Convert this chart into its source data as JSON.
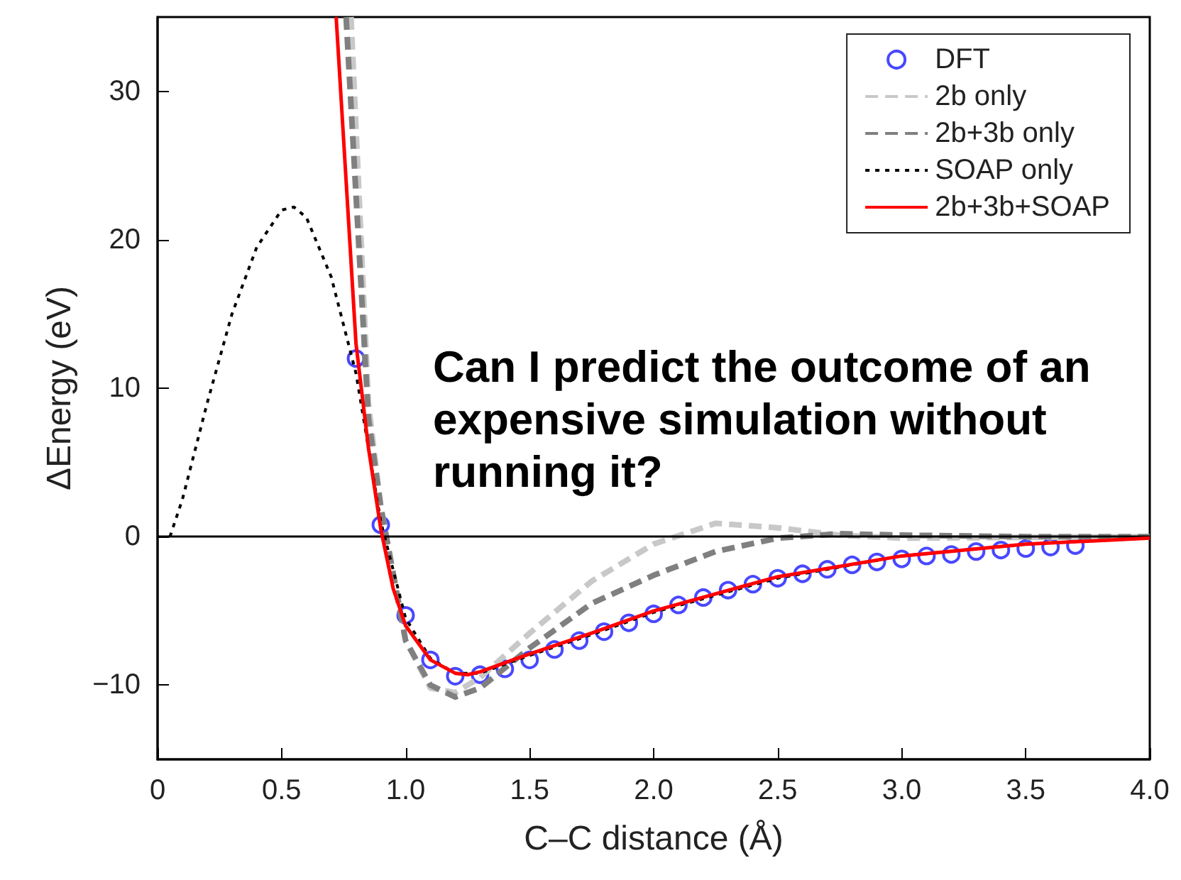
{
  "chart_data": {
    "type": "line",
    "xlabel": "C–C distance (Å)",
    "ylabel": "ΔEnergy (eV)",
    "xlim": [
      0,
      4.0
    ],
    "ylim": [
      -15,
      35
    ],
    "xticks": [
      0,
      {
        "value": 0.5,
        "label": "0.5"
      },
      {
        "value": 1,
        "label": "1.0"
      },
      {
        "value": 1.5,
        "label": "1.5"
      },
      {
        "value": 2,
        "label": "2.0"
      },
      {
        "value": 2.5,
        "label": "2.5"
      },
      {
        "value": 3,
        "label": "3.0"
      },
      {
        "value": 3.5,
        "label": "3.5"
      },
      {
        "value": 4,
        "label": "4.0"
      }
    ],
    "yticks": [
      {
        "value": -10,
        "label": "−10"
      },
      0,
      10,
      20,
      30
    ],
    "grid": false,
    "legend": "top right",
    "ref_lines": [
      {
        "axis": "y",
        "value": 0,
        "color": "#000000",
        "line_style": "solid"
      }
    ],
    "annotations": [
      "Can I predict the outcome of an expensive simulation without running it?"
    ],
    "series": [
      {
        "name": "DFT",
        "type": "scatter",
        "marker": "circle",
        "color": "#1a1aff",
        "x": [
          0.8,
          0.9,
          1.0,
          1.1,
          1.2,
          1.3,
          1.4,
          1.5,
          1.6,
          1.7,
          1.8,
          1.9,
          2.0,
          2.1,
          2.2,
          2.3,
          2.4,
          2.5,
          2.6,
          2.7,
          2.8,
          2.9,
          3.0,
          3.1,
          3.2,
          3.3,
          3.4,
          3.5,
          3.6,
          3.7
        ],
        "values": [
          12,
          0.8,
          -5.3,
          -8.3,
          -9.4,
          -9.3,
          -8.9,
          -8.3,
          -7.6,
          -7.0,
          -6.4,
          -5.8,
          -5.2,
          -4.6,
          -4.1,
          -3.6,
          -3.2,
          -2.8,
          -2.5,
          -2.2,
          -1.9,
          -1.7,
          -1.5,
          -1.3,
          -1.2,
          -1.0,
          -0.9,
          -0.8,
          -0.7,
          -0.6
        ]
      },
      {
        "name": "2b only",
        "marker": "none",
        "line_style": "dashed",
        "color": "#c8c8c8",
        "x": [
          0.78,
          0.85,
          0.9,
          1.0,
          1.1,
          1.2,
          1.3,
          1.5,
          1.75,
          2.0,
          2.25,
          2.5,
          2.75,
          3.0,
          4.0
        ],
        "values": [
          35,
          9,
          2,
          -7,
          -10.2,
          -10.5,
          -9.5,
          -6.5,
          -3,
          -0.5,
          0.9,
          0.6,
          0.1,
          -0.1,
          0
        ]
      },
      {
        "name": "2b+3b only",
        "marker": "none",
        "line_style": "dashed",
        "color": "#808080",
        "x": [
          0.76,
          0.85,
          0.9,
          1.0,
          1.1,
          1.2,
          1.3,
          1.5,
          1.75,
          2.0,
          2.25,
          2.5,
          2.75,
          3.0,
          3.5,
          4.0
        ],
        "values": [
          35,
          8,
          2,
          -7,
          -10,
          -10.8,
          -10.2,
          -7.5,
          -4.5,
          -2.6,
          -1,
          -0.1,
          0.2,
          0.1,
          0,
          0
        ]
      },
      {
        "name": "SOAP only",
        "marker": "none",
        "line_style": "dotted",
        "color": "#000000",
        "x": [
          0.05,
          0.1,
          0.2,
          0.3,
          0.4,
          0.5,
          0.55,
          0.6,
          0.7,
          0.8,
          0.9,
          1.0,
          1.1,
          1.2,
          1.3,
          1.5,
          1.75,
          2.0,
          2.5,
          3.0,
          3.5,
          4.0
        ],
        "values": [
          0,
          2.5,
          9,
          15,
          19.5,
          22,
          22.2,
          21.5,
          17.5,
          11,
          1,
          -5.5,
          -8.2,
          -9.2,
          -9.2,
          -8,
          -6.6,
          -5.1,
          -2.8,
          -1.3,
          -0.5,
          -0.1
        ]
      },
      {
        "name": "2b+3b+SOAP",
        "marker": "none",
        "line_style": "solid",
        "color": "#ff0000",
        "x": [
          0.72,
          0.8,
          0.85,
          0.9,
          0.95,
          1.0,
          1.1,
          1.2,
          1.25,
          1.3,
          1.5,
          1.75,
          2.0,
          2.5,
          3.0,
          3.5,
          4.0
        ],
        "values": [
          35,
          13,
          6,
          0.5,
          -3.5,
          -6,
          -8.3,
          -9.2,
          -9.3,
          -9.1,
          -7.9,
          -6.5,
          -5.0,
          -2.7,
          -1.3,
          -0.5,
          -0.1
        ]
      }
    ]
  }
}
